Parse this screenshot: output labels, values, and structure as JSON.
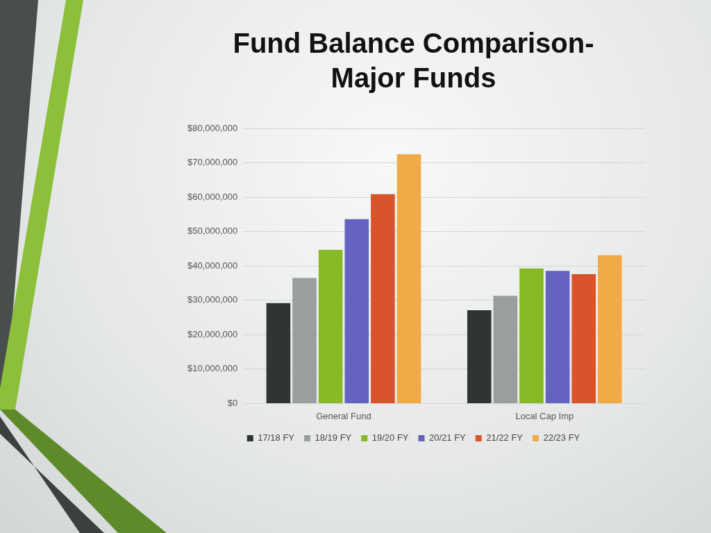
{
  "chart_data": {
    "type": "bar",
    "title": [
      "Fund Balance Comparison-",
      "Major Funds"
    ],
    "categories": [
      "General Fund",
      "Local Cap Imp"
    ],
    "series": [
      {
        "name": "17/18 FY",
        "color": "#2f3435",
        "values": [
          29200000,
          27100000
        ]
      },
      {
        "name": "18/19 FY",
        "color": "#999e9e",
        "values": [
          36500000,
          31300000
        ]
      },
      {
        "name": "19/20 FY",
        "color": "#86b925",
        "values": [
          44700000,
          39300000
        ]
      },
      {
        "name": "20/21 FY",
        "color": "#6464c0",
        "values": [
          53600000,
          38600000
        ]
      },
      {
        "name": "21/22 FY",
        "color": "#d9542b",
        "values": [
          60900000,
          37600000
        ]
      },
      {
        "name": "22/23 FY",
        "color": "#f0aa48",
        "values": [
          72500000,
          43100000
        ]
      }
    ],
    "ylim": [
      0,
      80000000
    ],
    "yticks": [
      {
        "value": 0,
        "label": "$0"
      },
      {
        "value": 10000000,
        "label": "$10,000,000"
      },
      {
        "value": 20000000,
        "label": "$20,000,000"
      },
      {
        "value": 30000000,
        "label": "$30,000,000"
      },
      {
        "value": 40000000,
        "label": "$40,000,000"
      },
      {
        "value": 50000000,
        "label": "$50,000,000"
      },
      {
        "value": 60000000,
        "label": "$60,000,000"
      },
      {
        "value": 70000000,
        "label": "$70,000,000"
      },
      {
        "value": 80000000,
        "label": "$80,000,000"
      }
    ],
    "grid": true,
    "legend": "bottom"
  }
}
